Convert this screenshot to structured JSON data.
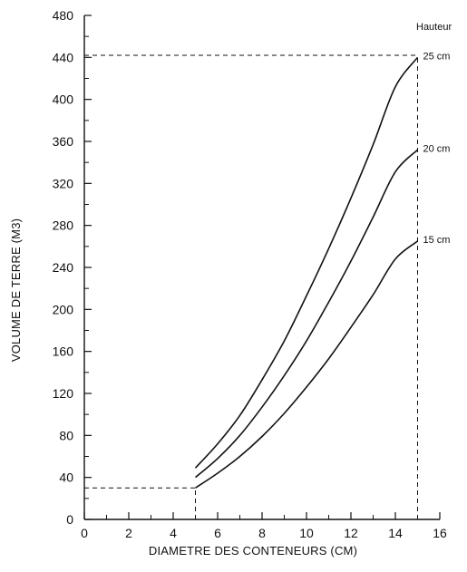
{
  "chart_data": {
    "type": "line",
    "title": "",
    "xlabel": "DIAMETRE DES CONTENEURS (CM)",
    "ylabel": "VOLUME DE TERRE (M3)",
    "xlim": [
      0,
      16
    ],
    "ylim": [
      0,
      480
    ],
    "x_ticks": [
      0,
      2,
      4,
      6,
      8,
      10,
      12,
      14,
      16
    ],
    "y_ticks": [
      0,
      40,
      80,
      120,
      160,
      200,
      240,
      280,
      320,
      360,
      400,
      440,
      480
    ],
    "grid": false,
    "legend_title": "Hauteur",
    "legend_placement": "right",
    "line_color": "#111111",
    "series": [
      {
        "name": "25 cm",
        "x": [
          5,
          6,
          7,
          8,
          9,
          10,
          11,
          12,
          13,
          14,
          15
        ],
        "y": [
          49,
          72,
          99,
          133,
          170,
          213,
          258,
          306,
          357,
          412,
          440
        ]
      },
      {
        "name": "20 cm",
        "x": [
          5,
          6,
          7,
          8,
          9,
          10,
          11,
          12,
          13,
          14,
          15
        ],
        "y": [
          40,
          58,
          80,
          107,
          137,
          170,
          207,
          246,
          288,
          331,
          352
        ]
      },
      {
        "name": "15 cm",
        "x": [
          5,
          6,
          7,
          8,
          9,
          10,
          11,
          12,
          13,
          14,
          15
        ],
        "y": [
          30,
          44,
          60,
          79,
          101,
          126,
          153,
          183,
          214,
          248,
          265
        ]
      }
    ],
    "reference_lines": [
      {
        "x_from": 0,
        "x_to": 5,
        "y": 30,
        "style": "dashed"
      },
      {
        "x": 5,
        "y_from": 0,
        "y_to": 30,
        "style": "dashed"
      },
      {
        "x_from": 0,
        "x_to": 15,
        "y": 442,
        "style": "dashed"
      },
      {
        "x": 15,
        "y_from": 0,
        "y_to": 442,
        "style": "dashed"
      }
    ]
  }
}
